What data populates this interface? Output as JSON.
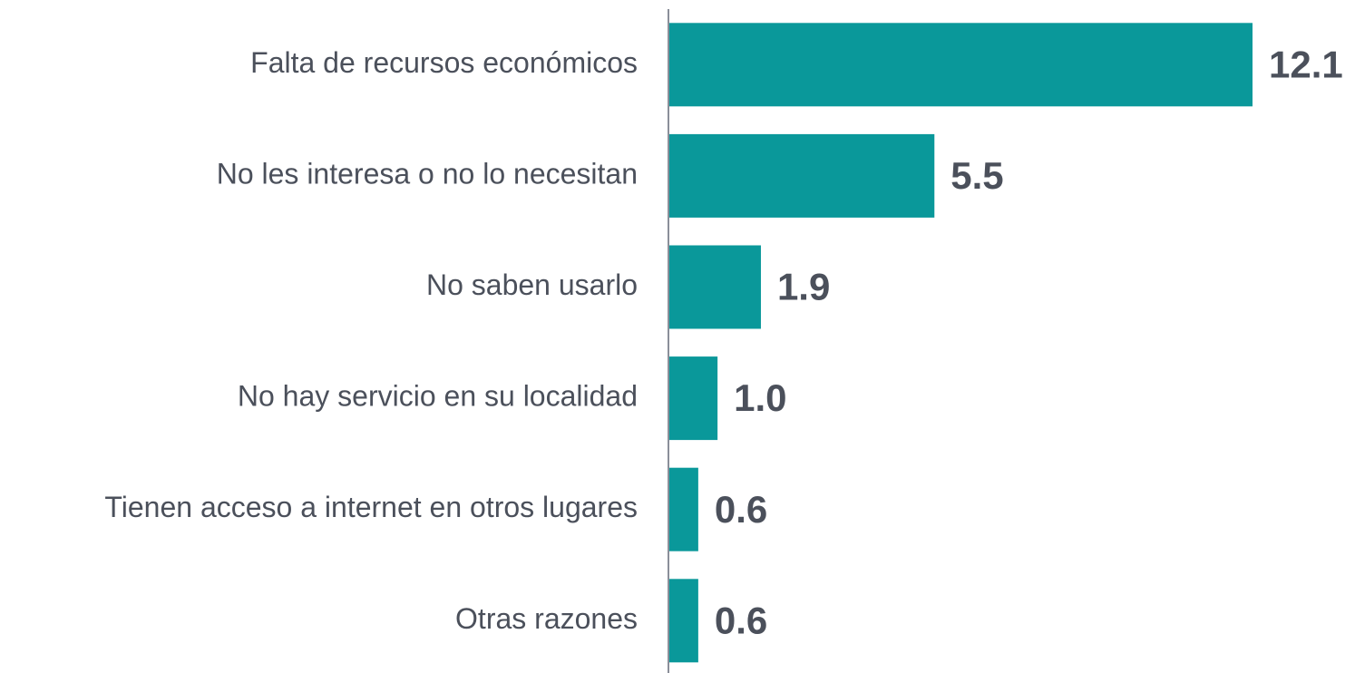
{
  "chart_data": {
    "type": "bar",
    "orientation": "horizontal",
    "categories": [
      "Falta de recursos económicos",
      "No les interesa o no lo necesitan",
      "No saben usarlo",
      "No hay servicio en su localidad",
      "Tienen acceso a internet en otros lugares",
      "Otras razones"
    ],
    "values": [
      12.1,
      5.5,
      1.9,
      1.0,
      0.6,
      0.6
    ],
    "value_labels": [
      "12.1",
      "5.5",
      "1.9",
      "1.0",
      "0.6",
      "0.6"
    ],
    "color": "#0a989a"
  }
}
